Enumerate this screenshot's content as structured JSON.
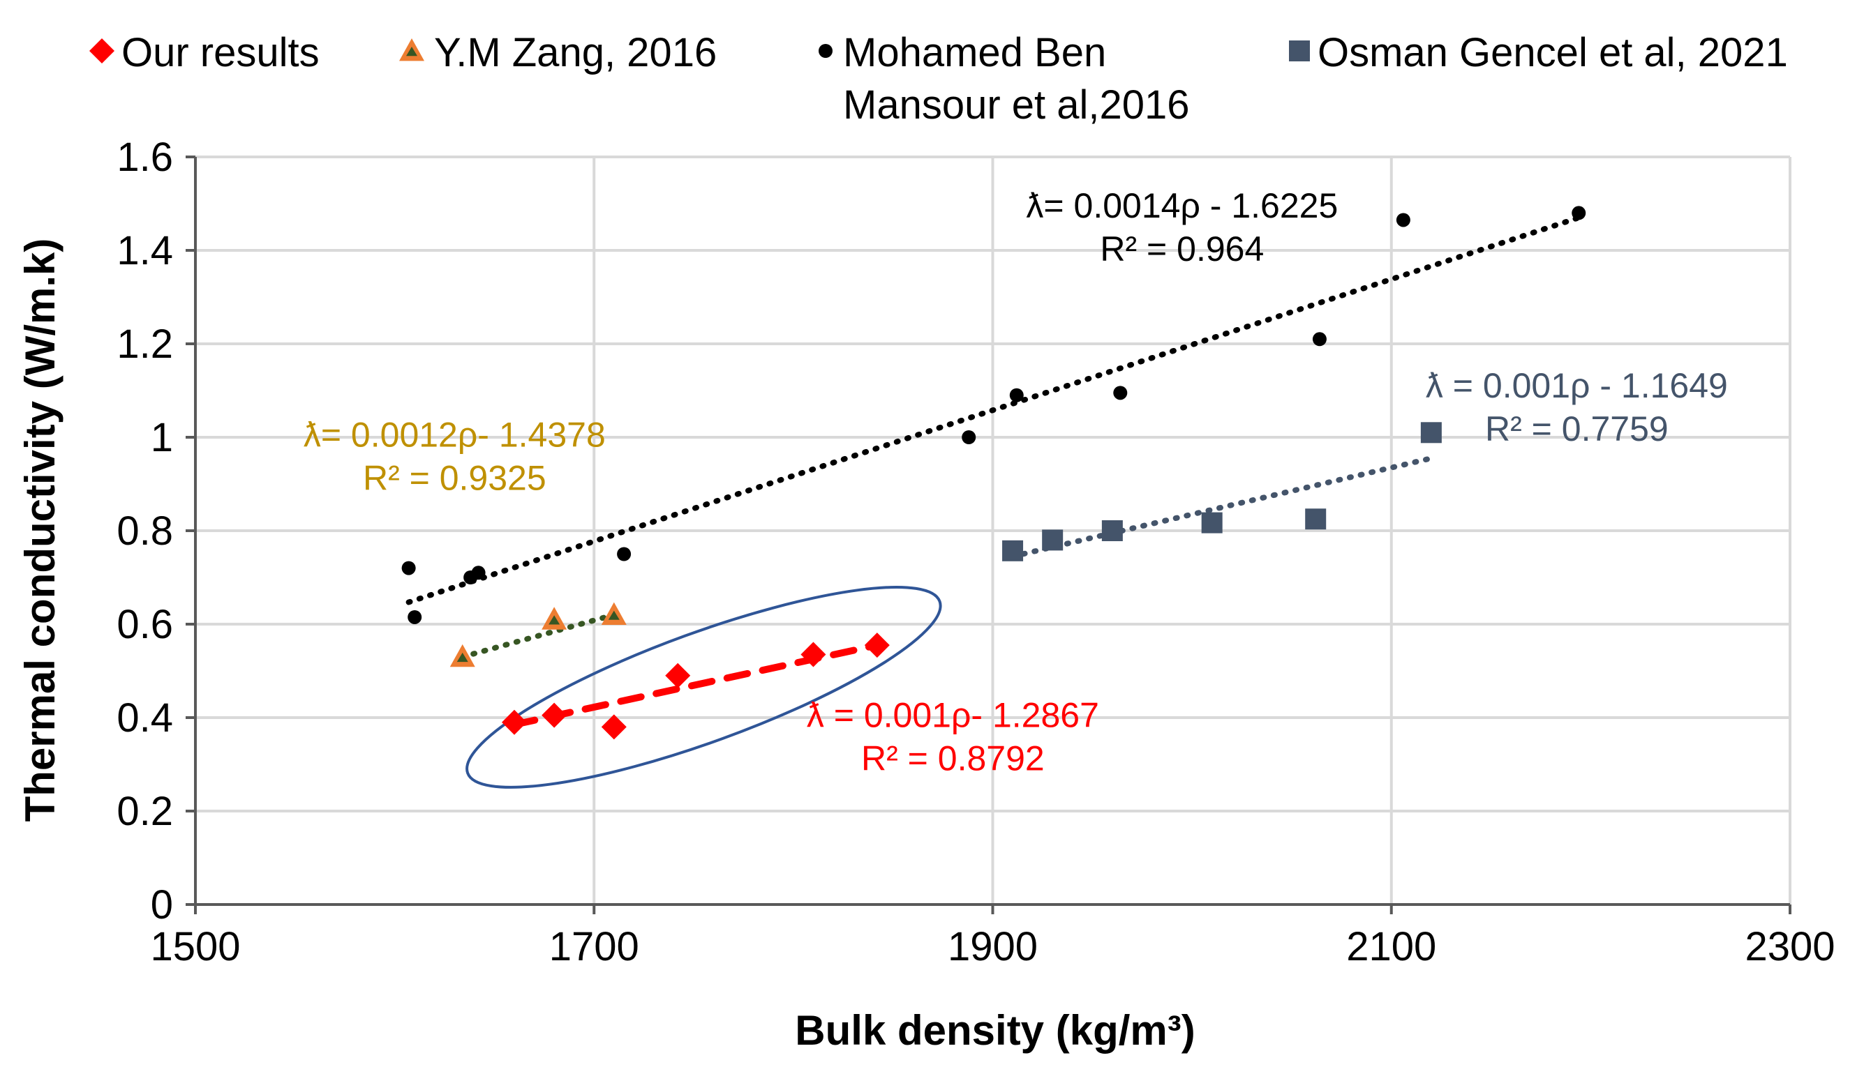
{
  "chart_data": {
    "type": "scatter",
    "title": "",
    "xlabel": "Bulk density (kg/m³)",
    "ylabel": "Thermal conductivity (W/m.k)",
    "xlim": [
      1500,
      2300
    ],
    "ylim": [
      0,
      1.6
    ],
    "xticks": [
      "1500",
      "1700",
      "1900",
      "2100",
      "2300"
    ],
    "yticks": [
      "0",
      "0.2",
      "0.4",
      "0.6",
      "0.8",
      "1",
      "1.2",
      "1.4",
      "1.6"
    ],
    "grid": true,
    "legend_position": "top",
    "series": [
      {
        "id": "ours",
        "name": "Our results",
        "marker": "diamond",
        "color": "#ff0000",
        "x": [
          1660,
          1680,
          1710,
          1742,
          1810,
          1842
        ],
        "y": [
          0.39,
          0.405,
          0.38,
          0.49,
          0.535,
          0.555
        ],
        "trend": {
          "style": "dashed",
          "color": "#ff0000",
          "x0": 1660,
          "y0": 0.385,
          "x1": 1842,
          "y1": 0.555
        },
        "equation": {
          "line1": "ƛ = 0.001ρ- 1.2867",
          "line2": "R² = 0.8792",
          "x": 1880,
          "y": 0.38,
          "color": "#ff0000"
        }
      },
      {
        "id": "zang",
        "name": "Y.M Zang, 2016",
        "marker": "triangle",
        "color": "#ed7d31",
        "x": [
          1634,
          1680,
          1710
        ],
        "y": [
          0.53,
          0.61,
          0.62
        ],
        "trend": {
          "style": "dotted",
          "color": "#375623",
          "x0": 1634,
          "y0": 0.53,
          "x1": 1710,
          "y1": 0.62
        },
        "equation": {
          "line1": "ƛ= 0.0012ρ- 1.4378",
          "line2": "R² = 0.9325",
          "x": 1630,
          "y": 0.98,
          "color": "#bf9000"
        }
      },
      {
        "id": "mansour",
        "name": "Mohamed Ben Mansour et al,2016",
        "name_line1": "Mohamed Ben",
        "name_line2": "Mansour et al,2016",
        "marker": "circle",
        "color": "#000000",
        "x": [
          1607,
          1610,
          1638,
          1642,
          1715,
          1888,
          1912,
          1964,
          2064,
          2106,
          2194
        ],
        "y": [
          0.72,
          0.615,
          0.7,
          0.71,
          0.75,
          1.0,
          1.09,
          1.095,
          1.21,
          1.465,
          1.48
        ],
        "trend": {
          "style": "dotted",
          "color": "#000000",
          "x0": 1607,
          "y0": 0.647,
          "x1": 2194,
          "y1": 1.47
        },
        "equation": {
          "line1": "ƛ= 0.0014ρ - 1.6225",
          "line2": "R² = 0.964",
          "x": 1995,
          "y": 1.47,
          "color": "#000000"
        }
      },
      {
        "id": "gencel",
        "name": "Osman Gencel et al, 2021",
        "marker": "square",
        "color": "#44546a",
        "x": [
          1910,
          1930,
          1960,
          2010,
          2062,
          2120
        ],
        "y": [
          0.757,
          0.78,
          0.8,
          0.817,
          0.825,
          1.01
        ],
        "trend": {
          "style": "dotted",
          "color": "#44546a",
          "x0": 1910,
          "y0": 0.745,
          "x1": 2118,
          "y1": 0.953
        },
        "equation": {
          "line1": "ƛ = 0.001ρ - 1.1649",
          "line2": "R² = 0.7759",
          "x": 2193,
          "y": 1.085,
          "color": "#44546a"
        }
      }
    ],
    "annotations": [
      {
        "type": "ellipse",
        "color": "#2f5597",
        "cx": 1755,
        "cy": 0.465,
        "rx": 120,
        "ry": 0.13,
        "angle": -20
      }
    ]
  }
}
